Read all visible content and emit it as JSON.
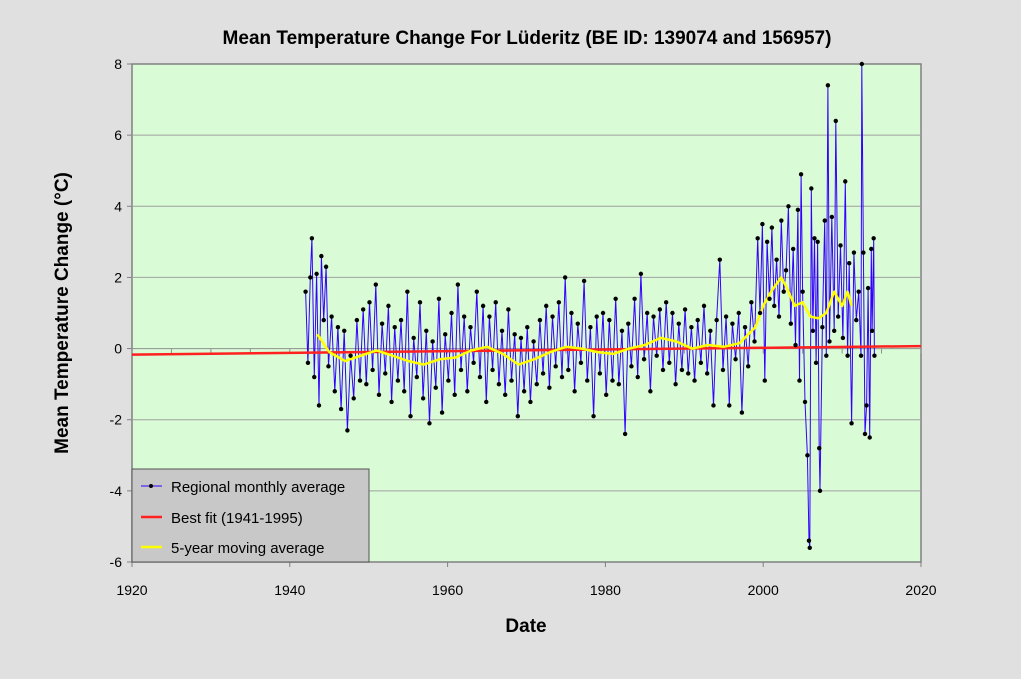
{
  "chart_data": {
    "type": "line",
    "title": "Mean Temperature Change For Lüderitz (BE ID: 139074 and 156957)",
    "xlabel": "Date",
    "ylabel": "Mean  Temperature  Change  (°C)",
    "xlim": [
      1920,
      2020
    ],
    "ylim": [
      -6,
      8
    ],
    "x_ticks": [
      "1920",
      "1940",
      "1960",
      "1980",
      "2000",
      "2020"
    ],
    "y_ticks": [
      "8",
      "6",
      "4",
      "2",
      "0",
      "-2",
      "-4",
      "-6"
    ],
    "grid": "horizontal",
    "legend_position": "bottom-left",
    "colors": {
      "plot_background": "#d9fbd6",
      "monthly": "#3300ff",
      "best_fit": "#ff2020",
      "moving_average": "#ffff00",
      "legend_background": "#c8c8c8"
    },
    "series": [
      {
        "name": "Regional monthly average",
        "points": [
          [
            1942.0,
            1.6
          ],
          [
            1942.3,
            -0.4
          ],
          [
            1942.6,
            2.0
          ],
          [
            1942.8,
            3.1
          ],
          [
            1943.1,
            -0.8
          ],
          [
            1943.4,
            2.1
          ],
          [
            1943.7,
            -1.6
          ],
          [
            1944.0,
            2.6
          ],
          [
            1944.3,
            0.8
          ],
          [
            1944.6,
            2.3
          ],
          [
            1944.9,
            -0.5
          ],
          [
            1945.3,
            0.9
          ],
          [
            1945.7,
            -1.2
          ],
          [
            1946.1,
            0.6
          ],
          [
            1946.5,
            -1.7
          ],
          [
            1946.9,
            0.5
          ],
          [
            1947.3,
            -2.3
          ],
          [
            1947.7,
            -0.2
          ],
          [
            1948.1,
            -1.4
          ],
          [
            1948.5,
            0.8
          ],
          [
            1948.9,
            -0.9
          ],
          [
            1949.3,
            1.1
          ],
          [
            1949.7,
            -1.0
          ],
          [
            1950.1,
            1.3
          ],
          [
            1950.5,
            -0.6
          ],
          [
            1950.9,
            1.8
          ],
          [
            1951.3,
            -1.3
          ],
          [
            1951.7,
            0.7
          ],
          [
            1952.1,
            -0.7
          ],
          [
            1952.5,
            1.2
          ],
          [
            1952.9,
            -1.5
          ],
          [
            1953.3,
            0.6
          ],
          [
            1953.7,
            -0.9
          ],
          [
            1954.1,
            0.8
          ],
          [
            1954.5,
            -1.2
          ],
          [
            1954.9,
            1.6
          ],
          [
            1955.3,
            -1.9
          ],
          [
            1955.7,
            0.3
          ],
          [
            1956.1,
            -0.8
          ],
          [
            1956.5,
            1.3
          ],
          [
            1956.9,
            -1.4
          ],
          [
            1957.3,
            0.5
          ],
          [
            1957.7,
            -2.1
          ],
          [
            1958.1,
            0.2
          ],
          [
            1958.5,
            -1.1
          ],
          [
            1958.9,
            1.4
          ],
          [
            1959.3,
            -1.8
          ],
          [
            1959.7,
            0.4
          ],
          [
            1960.1,
            -0.9
          ],
          [
            1960.5,
            1.0
          ],
          [
            1960.9,
            -1.3
          ],
          [
            1961.3,
            1.8
          ],
          [
            1961.7,
            -0.6
          ],
          [
            1962.1,
            0.9
          ],
          [
            1962.5,
            -1.2
          ],
          [
            1962.9,
            0.6
          ],
          [
            1963.3,
            -0.4
          ],
          [
            1963.7,
            1.6
          ],
          [
            1964.1,
            -0.8
          ],
          [
            1964.5,
            1.2
          ],
          [
            1964.9,
            -1.5
          ],
          [
            1965.3,
            0.9
          ],
          [
            1965.7,
            -0.6
          ],
          [
            1966.1,
            1.3
          ],
          [
            1966.5,
            -1.0
          ],
          [
            1966.9,
            0.5
          ],
          [
            1967.3,
            -1.3
          ],
          [
            1967.7,
            1.1
          ],
          [
            1968.1,
            -0.9
          ],
          [
            1968.5,
            0.4
          ],
          [
            1968.9,
            -1.9
          ],
          [
            1969.3,
            0.3
          ],
          [
            1969.7,
            -1.2
          ],
          [
            1970.1,
            0.6
          ],
          [
            1970.5,
            -1.5
          ],
          [
            1970.9,
            0.2
          ],
          [
            1971.3,
            -1.0
          ],
          [
            1971.7,
            0.8
          ],
          [
            1972.1,
            -0.7
          ],
          [
            1972.5,
            1.2
          ],
          [
            1972.9,
            -1.1
          ],
          [
            1973.3,
            0.9
          ],
          [
            1973.7,
            -0.5
          ],
          [
            1974.1,
            1.3
          ],
          [
            1974.5,
            -0.8
          ],
          [
            1974.9,
            2.0
          ],
          [
            1975.3,
            -0.6
          ],
          [
            1975.7,
            1.0
          ],
          [
            1976.1,
            -1.2
          ],
          [
            1976.5,
            0.7
          ],
          [
            1976.9,
            -0.4
          ],
          [
            1977.3,
            1.9
          ],
          [
            1977.7,
            -0.9
          ],
          [
            1978.1,
            0.6
          ],
          [
            1978.5,
            -1.9
          ],
          [
            1978.9,
            0.9
          ],
          [
            1979.3,
            -0.7
          ],
          [
            1979.7,
            1.0
          ],
          [
            1980.1,
            -1.3
          ],
          [
            1980.5,
            0.8
          ],
          [
            1980.9,
            -0.9
          ],
          [
            1981.3,
            1.4
          ],
          [
            1981.7,
            -1.0
          ],
          [
            1982.1,
            0.5
          ],
          [
            1982.5,
            -2.4
          ],
          [
            1982.9,
            0.7
          ],
          [
            1983.3,
            -0.5
          ],
          [
            1983.7,
            1.4
          ],
          [
            1984.1,
            -0.8
          ],
          [
            1984.5,
            2.1
          ],
          [
            1984.9,
            -0.3
          ],
          [
            1985.3,
            1.0
          ],
          [
            1985.7,
            -1.2
          ],
          [
            1986.1,
            0.9
          ],
          [
            1986.5,
            -0.2
          ],
          [
            1986.9,
            1.1
          ],
          [
            1987.3,
            -0.6
          ],
          [
            1987.7,
            1.3
          ],
          [
            1988.1,
            -0.4
          ],
          [
            1988.5,
            1.0
          ],
          [
            1988.9,
            -1.0
          ],
          [
            1989.3,
            0.7
          ],
          [
            1989.7,
            -0.6
          ],
          [
            1990.1,
            1.1
          ],
          [
            1990.5,
            -0.7
          ],
          [
            1990.9,
            0.6
          ],
          [
            1991.3,
            -0.9
          ],
          [
            1991.7,
            0.8
          ],
          [
            1992.1,
            -0.4
          ],
          [
            1992.5,
            1.2
          ],
          [
            1992.9,
            -0.7
          ],
          [
            1993.3,
            0.5
          ],
          [
            1993.7,
            -1.6
          ],
          [
            1994.1,
            0.8
          ],
          [
            1994.5,
            2.5
          ],
          [
            1994.9,
            -0.6
          ],
          [
            1995.3,
            0.9
          ],
          [
            1995.7,
            -1.6
          ],
          [
            1996.1,
            0.7
          ],
          [
            1996.5,
            -0.3
          ],
          [
            1996.9,
            1.0
          ],
          [
            1997.3,
            -1.8
          ],
          [
            1997.7,
            0.6
          ],
          [
            1998.1,
            -0.5
          ],
          [
            1998.5,
            1.3
          ],
          [
            1998.9,
            0.2
          ],
          [
            1999.3,
            3.1
          ],
          [
            1999.6,
            1.0
          ],
          [
            1999.9,
            3.5
          ],
          [
            2000.2,
            -0.9
          ],
          [
            2000.5,
            3.0
          ],
          [
            2000.8,
            1.4
          ],
          [
            2001.1,
            3.4
          ],
          [
            2001.4,
            1.2
          ],
          [
            2001.7,
            2.5
          ],
          [
            2002.0,
            0.9
          ],
          [
            2002.3,
            3.6
          ],
          [
            2002.6,
            1.6
          ],
          [
            2002.9,
            2.2
          ],
          [
            2003.2,
            4.0
          ],
          [
            2003.5,
            0.7
          ],
          [
            2003.8,
            2.8
          ],
          [
            2004.1,
            0.1
          ],
          [
            2004.4,
            3.9
          ],
          [
            2004.6,
            -0.9
          ],
          [
            2004.8,
            4.9
          ],
          [
            2005.0,
            1.6
          ],
          [
            2005.3,
            -1.5
          ],
          [
            2005.6,
            -3.0
          ],
          [
            2005.8,
            -5.4
          ],
          [
            2005.9,
            -5.6
          ],
          [
            2006.1,
            4.5
          ],
          [
            2006.3,
            0.5
          ],
          [
            2006.5,
            3.1
          ],
          [
            2006.7,
            -0.4
          ],
          [
            2006.9,
            3.0
          ],
          [
            2007.1,
            -2.8
          ],
          [
            2007.2,
            -4.0
          ],
          [
            2007.5,
            0.6
          ],
          [
            2007.8,
            3.6
          ],
          [
            2008.0,
            -0.2
          ],
          [
            2008.2,
            7.4
          ],
          [
            2008.4,
            0.2
          ],
          [
            2008.7,
            3.7
          ],
          [
            2009.0,
            0.5
          ],
          [
            2009.2,
            6.4
          ],
          [
            2009.5,
            0.9
          ],
          [
            2009.8,
            2.9
          ],
          [
            2010.1,
            0.3
          ],
          [
            2010.4,
            4.7
          ],
          [
            2010.7,
            -0.2
          ],
          [
            2010.9,
            2.4
          ],
          [
            2011.2,
            -2.1
          ],
          [
            2011.5,
            2.7
          ],
          [
            2011.8,
            0.8
          ],
          [
            2012.1,
            1.6
          ],
          [
            2012.4,
            -0.2
          ],
          [
            2012.5,
            8.0
          ],
          [
            2012.7,
            2.7
          ],
          [
            2012.9,
            -2.4
          ],
          [
            2013.1,
            -1.6
          ],
          [
            2013.3,
            1.7
          ],
          [
            2013.5,
            -2.5
          ],
          [
            2013.7,
            2.8
          ],
          [
            2013.8,
            0.5
          ],
          [
            2014.0,
            3.1
          ],
          [
            2014.1,
            -0.2
          ]
        ]
      },
      {
        "name": "Best fit (1941-1995)",
        "points": [
          [
            1920,
            -0.17
          ],
          [
            2020,
            0.07
          ]
        ]
      },
      {
        "name": "5-year moving average",
        "points": [
          [
            1943.5,
            0.4
          ],
          [
            1945,
            -0.1
          ],
          [
            1947,
            -0.35
          ],
          [
            1949,
            -0.2
          ],
          [
            1951,
            -0.05
          ],
          [
            1953,
            -0.2
          ],
          [
            1955,
            -0.35
          ],
          [
            1957,
            -0.45
          ],
          [
            1959,
            -0.3
          ],
          [
            1961,
            -0.25
          ],
          [
            1963,
            -0.05
          ],
          [
            1965,
            0.05
          ],
          [
            1967,
            -0.15
          ],
          [
            1969,
            -0.45
          ],
          [
            1971,
            -0.3
          ],
          [
            1973,
            -0.1
          ],
          [
            1975,
            0.05
          ],
          [
            1977,
            0.0
          ],
          [
            1979,
            -0.1
          ],
          [
            1981,
            -0.15
          ],
          [
            1983,
            0.0
          ],
          [
            1985,
            0.1
          ],
          [
            1987,
            0.3
          ],
          [
            1989,
            0.2
          ],
          [
            1991,
            0.0
          ],
          [
            1993,
            0.1
          ],
          [
            1995,
            0.05
          ],
          [
            1997,
            0.15
          ],
          [
            1999,
            0.6
          ],
          [
            2000,
            1.2
          ],
          [
            2001,
            1.6
          ],
          [
            2002.3,
            2.0
          ],
          [
            2003,
            1.7
          ],
          [
            2004,
            1.2
          ],
          [
            2005,
            1.3
          ],
          [
            2006,
            0.9
          ],
          [
            2007,
            0.85
          ],
          [
            2008,
            1.0
          ],
          [
            2009,
            1.6
          ],
          [
            2010,
            1.2
          ],
          [
            2010.7,
            1.6
          ],
          [
            2011.2,
            1.2
          ]
        ]
      }
    ]
  }
}
